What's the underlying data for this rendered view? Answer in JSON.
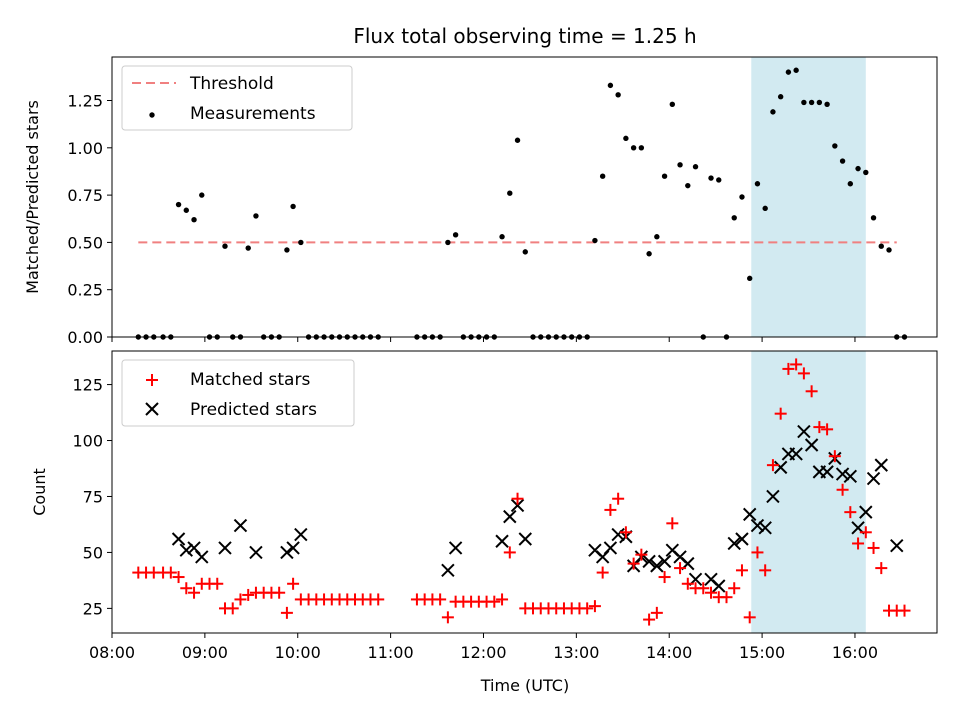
{
  "chart_data": [
    {
      "type": "scatter",
      "title": "Flux total observing time = 1.25 h",
      "xlabel": "",
      "ylabel": "Matched/Predicted stars",
      "ylim": [
        0,
        1.48
      ],
      "yticks": [
        "0.00",
        "0.25",
        "0.50",
        "0.75",
        "1.00",
        "1.25"
      ],
      "xlim": [
        "08:00",
        "16:53"
      ],
      "legend": "top-left",
      "highlight_span": [
        "14:53",
        "16:07"
      ],
      "threshold": {
        "name": "Threshold",
        "value": 0.5,
        "x_range": [
          "08:17",
          "16:27"
        ],
        "color": "#f08080"
      },
      "series": [
        {
          "name": "Measurements",
          "color": "#000000",
          "points": [
            [
              "08:17",
              0
            ],
            [
              "08:22",
              0
            ],
            [
              "08:27",
              0
            ],
            [
              "08:33",
              0
            ],
            [
              "08:38",
              0
            ],
            [
              "08:43",
              0.7
            ],
            [
              "08:48",
              0.67
            ],
            [
              "08:53",
              0.62
            ],
            [
              "08:58",
              0.75
            ],
            [
              "09:03",
              0
            ],
            [
              "09:08",
              0
            ],
            [
              "09:13",
              0.48
            ],
            [
              "09:18",
              0
            ],
            [
              "09:23",
              0
            ],
            [
              "09:28",
              0.47
            ],
            [
              "09:33",
              0.64
            ],
            [
              "09:38",
              0
            ],
            [
              "09:43",
              0
            ],
            [
              "09:48",
              0
            ],
            [
              "09:53",
              0.46
            ],
            [
              "09:57",
              0.69
            ],
            [
              "10:02",
              0.5
            ],
            [
              "10:07",
              0
            ],
            [
              "10:12",
              0
            ],
            [
              "10:17",
              0
            ],
            [
              "10:22",
              0
            ],
            [
              "10:27",
              0
            ],
            [
              "10:32",
              0
            ],
            [
              "10:37",
              0
            ],
            [
              "10:42",
              0
            ],
            [
              "10:47",
              0
            ],
            [
              "10:52",
              0
            ],
            [
              "11:17",
              0
            ],
            [
              "11:22",
              0
            ],
            [
              "11:27",
              0
            ],
            [
              "11:32",
              0
            ],
            [
              "11:37",
              0.5
            ],
            [
              "11:42",
              0.54
            ],
            [
              "11:47",
              0
            ],
            [
              "11:52",
              0
            ],
            [
              "11:57",
              0
            ],
            [
              "12:02",
              0
            ],
            [
              "12:07",
              0
            ],
            [
              "12:12",
              0.53
            ],
            [
              "12:17",
              0.76
            ],
            [
              "12:22",
              1.04
            ],
            [
              "12:27",
              0.45
            ],
            [
              "12:32",
              0
            ],
            [
              "12:37",
              0
            ],
            [
              "12:42",
              0
            ],
            [
              "12:47",
              0
            ],
            [
              "12:52",
              0
            ],
            [
              "12:57",
              0
            ],
            [
              "13:02",
              0
            ],
            [
              "13:07",
              0
            ],
            [
              "13:12",
              0.51
            ],
            [
              "13:17",
              0.85
            ],
            [
              "13:22",
              1.33
            ],
            [
              "13:27",
              1.28
            ],
            [
              "13:32",
              1.05
            ],
            [
              "13:37",
              1.0
            ],
            [
              "13:42",
              1.0
            ],
            [
              "13:47",
              0.44
            ],
            [
              "13:52",
              0.53
            ],
            [
              "13:57",
              0.85
            ],
            [
              "14:02",
              1.23
            ],
            [
              "14:07",
              0.91
            ],
            [
              "14:12",
              0.8
            ],
            [
              "14:17",
              0.9
            ],
            [
              "14:22",
              0
            ],
            [
              "14:27",
              0.84
            ],
            [
              "14:32",
              0.83
            ],
            [
              "14:37",
              0
            ],
            [
              "14:42",
              0.63
            ],
            [
              "14:47",
              0.74
            ],
            [
              "14:52",
              0.31
            ],
            [
              "14:57",
              0.81
            ],
            [
              "15:02",
              0.68
            ],
            [
              "15:07",
              1.19
            ],
            [
              "15:12",
              1.27
            ],
            [
              "15:17",
              1.4
            ],
            [
              "15:22",
              1.41
            ],
            [
              "15:27",
              1.24
            ],
            [
              "15:32",
              1.24
            ],
            [
              "15:37",
              1.24
            ],
            [
              "15:42",
              1.23
            ],
            [
              "15:47",
              1.01
            ],
            [
              "15:52",
              0.93
            ],
            [
              "15:57",
              0.81
            ],
            [
              "16:02",
              0.89
            ],
            [
              "16:07",
              0.87
            ],
            [
              "16:12",
              0.63
            ],
            [
              "16:17",
              0.48
            ],
            [
              "16:22",
              0.46
            ],
            [
              "16:27",
              0
            ],
            [
              "16:32",
              0
            ]
          ]
        }
      ]
    },
    {
      "type": "scatter",
      "title": "",
      "xlabel": "Time (UTC)",
      "ylabel": "Count",
      "ylim": [
        14,
        140
      ],
      "yticks": [
        "25",
        "50",
        "75",
        "100",
        "125"
      ],
      "xlim": [
        "08:00",
        "16:53"
      ],
      "xticks": [
        "08:00",
        "09:00",
        "10:00",
        "11:00",
        "12:00",
        "13:00",
        "14:00",
        "15:00",
        "16:00"
      ],
      "legend": "top-left",
      "highlight_span": [
        "14:53",
        "16:07"
      ],
      "series": [
        {
          "name": "Matched stars",
          "marker": "plus",
          "color": "#ff0000",
          "points": [
            [
              "08:17",
              41
            ],
            [
              "08:22",
              41
            ],
            [
              "08:27",
              41
            ],
            [
              "08:33",
              41
            ],
            [
              "08:38",
              41
            ],
            [
              "08:43",
              39
            ],
            [
              "08:48",
              34
            ],
            [
              "08:53",
              32
            ],
            [
              "08:58",
              36
            ],
            [
              "09:03",
              36
            ],
            [
              "09:08",
              36
            ],
            [
              "09:13",
              25
            ],
            [
              "09:18",
              25
            ],
            [
              "09:23",
              29
            ],
            [
              "09:28",
              31
            ],
            [
              "09:33",
              32
            ],
            [
              "09:38",
              32
            ],
            [
              "09:43",
              32
            ],
            [
              "09:48",
              32
            ],
            [
              "09:53",
              23
            ],
            [
              "09:57",
              36
            ],
            [
              "10:02",
              29
            ],
            [
              "10:07",
              29
            ],
            [
              "10:12",
              29
            ],
            [
              "10:17",
              29
            ],
            [
              "10:22",
              29
            ],
            [
              "10:27",
              29
            ],
            [
              "10:32",
              29
            ],
            [
              "10:37",
              29
            ],
            [
              "10:42",
              29
            ],
            [
              "10:47",
              29
            ],
            [
              "10:52",
              29
            ],
            [
              "11:17",
              29
            ],
            [
              "11:22",
              29
            ],
            [
              "11:27",
              29
            ],
            [
              "11:32",
              29
            ],
            [
              "11:37",
              21
            ],
            [
              "11:42",
              28
            ],
            [
              "11:47",
              28
            ],
            [
              "11:52",
              28
            ],
            [
              "11:57",
              28
            ],
            [
              "12:02",
              28
            ],
            [
              "12:07",
              28
            ],
            [
              "12:12",
              29
            ],
            [
              "12:17",
              50
            ],
            [
              "12:22",
              74
            ],
            [
              "12:27",
              25
            ],
            [
              "12:32",
              25
            ],
            [
              "12:37",
              25
            ],
            [
              "12:42",
              25
            ],
            [
              "12:47",
              25
            ],
            [
              "12:52",
              25
            ],
            [
              "12:57",
              25
            ],
            [
              "13:02",
              25
            ],
            [
              "13:07",
              25
            ],
            [
              "13:12",
              26
            ],
            [
              "13:17",
              41
            ],
            [
              "13:22",
              69
            ],
            [
              "13:27",
              74
            ],
            [
              "13:32",
              59
            ],
            [
              "13:37",
              45
            ],
            [
              "13:42",
              49
            ],
            [
              "13:47",
              20
            ],
            [
              "13:52",
              23
            ],
            [
              "13:57",
              39
            ],
            [
              "14:02",
              63
            ],
            [
              "14:07",
              43
            ],
            [
              "14:12",
              36
            ],
            [
              "14:17",
              34
            ],
            [
              "14:22",
              34
            ],
            [
              "14:27",
              32
            ],
            [
              "14:32",
              30
            ],
            [
              "14:37",
              30
            ],
            [
              "14:42",
              34
            ],
            [
              "14:47",
              42
            ],
            [
              "14:52",
              21
            ],
            [
              "14:57",
              50
            ],
            [
              "15:02",
              42
            ],
            [
              "15:07",
              89
            ],
            [
              "15:12",
              112
            ],
            [
              "15:17",
              132
            ],
            [
              "15:22",
              134
            ],
            [
              "15:27",
              130
            ],
            [
              "15:32",
              122
            ],
            [
              "15:37",
              106
            ],
            [
              "15:42",
              105
            ],
            [
              "15:47",
              93
            ],
            [
              "15:52",
              78
            ],
            [
              "15:57",
              68
            ],
            [
              "16:02",
              54
            ],
            [
              "16:07",
              59
            ],
            [
              "16:12",
              52
            ],
            [
              "16:17",
              43
            ],
            [
              "16:22",
              24
            ],
            [
              "16:27",
              24
            ],
            [
              "16:32",
              24
            ]
          ]
        },
        {
          "name": "Predicted stars",
          "marker": "x",
          "color": "#000000",
          "points": [
            [
              "08:43",
              56
            ],
            [
              "08:48",
              51
            ],
            [
              "08:53",
              52
            ],
            [
              "08:58",
              48
            ],
            [
              "09:13",
              52
            ],
            [
              "09:23",
              62
            ],
            [
              "09:33",
              50
            ],
            [
              "09:53",
              50
            ],
            [
              "09:57",
              52
            ],
            [
              "10:02",
              58
            ],
            [
              "11:37",
              42
            ],
            [
              "11:42",
              52
            ],
            [
              "12:12",
              55
            ],
            [
              "12:17",
              66
            ],
            [
              "12:22",
              71
            ],
            [
              "12:27",
              56
            ],
            [
              "13:12",
              51
            ],
            [
              "13:17",
              48
            ],
            [
              "13:22",
              52
            ],
            [
              "13:27",
              58
            ],
            [
              "13:32",
              57
            ],
            [
              "13:37",
              44
            ],
            [
              "13:42",
              48
            ],
            [
              "13:47",
              46
            ],
            [
              "13:52",
              44
            ],
            [
              "13:57",
              46
            ],
            [
              "14:02",
              51
            ],
            [
              "14:07",
              48
            ],
            [
              "14:12",
              45
            ],
            [
              "14:17",
              38
            ],
            [
              "14:27",
              38
            ],
            [
              "14:32",
              35
            ],
            [
              "14:42",
              54
            ],
            [
              "14:47",
              56
            ],
            [
              "14:52",
              67
            ],
            [
              "14:57",
              62
            ],
            [
              "15:02",
              61
            ],
            [
              "15:07",
              75
            ],
            [
              "15:12",
              88
            ],
            [
              "15:17",
              94
            ],
            [
              "15:22",
              94
            ],
            [
              "15:27",
              104
            ],
            [
              "15:32",
              98
            ],
            [
              "15:37",
              86
            ],
            [
              "15:42",
              86
            ],
            [
              "15:47",
              92
            ],
            [
              "15:52",
              85
            ],
            [
              "15:57",
              84
            ],
            [
              "16:02",
              61
            ],
            [
              "16:07",
              68
            ],
            [
              "16:12",
              83
            ],
            [
              "16:17",
              89
            ],
            [
              "16:27",
              53
            ]
          ]
        }
      ]
    }
  ]
}
